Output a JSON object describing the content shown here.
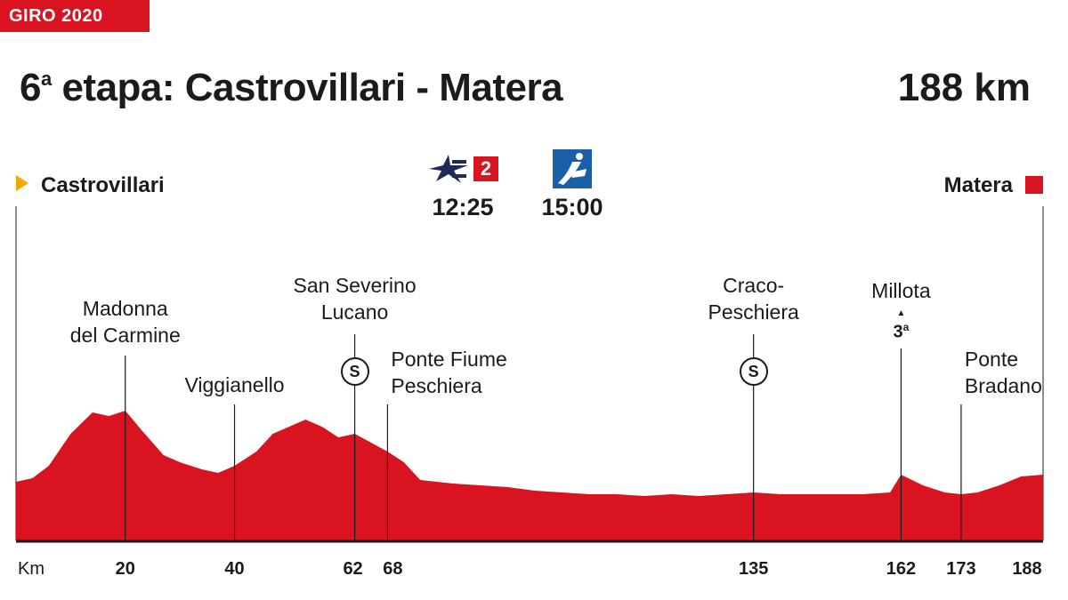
{
  "header": {
    "tag": "GIRO 2020",
    "stage_number": "6",
    "stage_sup": "a",
    "stage_text": " etapa: Castrovillari - Matera",
    "distance": "188 km"
  },
  "endpoints": {
    "start": "Castrovillari",
    "finish": "Matera"
  },
  "broadcast": [
    {
      "channel_icon": "eurosport-2-logo",
      "badge": "2",
      "time": "12:25"
    },
    {
      "channel_icon": "teledeporte-logo",
      "time": "15:00"
    }
  ],
  "colors": {
    "profile": "#d9131f",
    "accent": "#d9131f",
    "start_arrow": "#f2a900",
    "axis": "#1b1b1b",
    "logo_blue": "#1b5fa8",
    "logo_navy": "#1f2a5a"
  },
  "chart_data": {
    "type": "area",
    "title": "6ª etapa: Castrovillari - Matera",
    "xlabel": "Km",
    "ylabel": "",
    "xlim": [
      0,
      188
    ],
    "x": [
      0,
      3,
      6,
      10,
      14,
      17,
      20,
      23,
      27,
      30,
      34,
      37,
      40,
      44,
      47,
      50,
      53,
      56,
      59,
      62,
      65,
      68,
      71,
      74,
      77,
      80,
      85,
      90,
      95,
      100,
      105,
      110,
      115,
      120,
      125,
      130,
      135,
      140,
      145,
      150,
      155,
      160,
      162,
      166,
      170,
      173,
      176,
      180,
      184,
      188
    ],
    "y": [
      33,
      35,
      42,
      60,
      72,
      70,
      73,
      62,
      48,
      44,
      40,
      38,
      42,
      50,
      60,
      64,
      68,
      64,
      58,
      60,
      55,
      50,
      44,
      34,
      33,
      32,
      31,
      30,
      28,
      27,
      26,
      26,
      25,
      26,
      25,
      26,
      27,
      26,
      26,
      26,
      26,
      27,
      37,
      31,
      27,
      26,
      27,
      31,
      36,
      37
    ],
    "ticks": [
      20,
      40,
      62,
      68,
      135,
      162,
      173,
      188
    ],
    "tick_labels": [
      "20",
      "40",
      "62",
      "68",
      "135",
      "162",
      "173",
      "188"
    ],
    "points": [
      {
        "name": "Madonna del Carmine",
        "lines": [
          "Madonna",
          "del Carmine"
        ],
        "km": 20,
        "marker": ""
      },
      {
        "name": "Viggianello",
        "lines": [
          "Viggianello"
        ],
        "km": 40,
        "marker": ""
      },
      {
        "name": "San Severino Lucano",
        "lines": [
          "San Severino",
          "Lucano"
        ],
        "km": 62,
        "marker": "S"
      },
      {
        "name": "Ponte Fiume Peschiera",
        "lines": [
          "Ponte Fiume",
          "Peschiera"
        ],
        "km": 68,
        "marker": ""
      },
      {
        "name": "Craco-Peschiera",
        "lines": [
          "Craco-",
          "Peschiera"
        ],
        "km": 135,
        "marker": "S"
      },
      {
        "name": "Millota",
        "lines": [
          "Millota"
        ],
        "km": 162,
        "marker": "3",
        "marker_sup": "a"
      },
      {
        "name": "Ponte Bradano",
        "lines": [
          "Ponte",
          "Bradano"
        ],
        "km": 173,
        "marker": ""
      }
    ]
  }
}
